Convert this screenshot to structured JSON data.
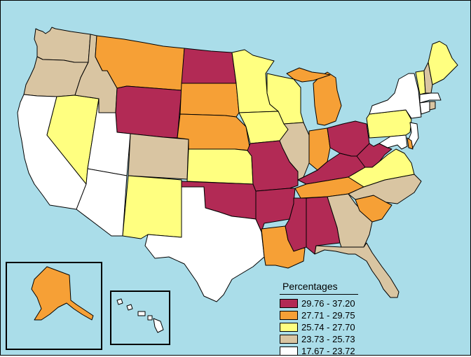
{
  "legend": {
    "title": "Percentages",
    "classes": [
      {
        "label": "29.76 - 37.20",
        "color": "#b22a55"
      },
      {
        "label": "27.71 - 29.75",
        "color": "#f6a036"
      },
      {
        "label": "25.74 - 27.70",
        "color": "#ffff80"
      },
      {
        "label": "23.73 - 25.73",
        "color": "#d9c5a2"
      },
      {
        "label": "17.67 - 23.72",
        "color": "#ffffff"
      }
    ]
  },
  "colors": {
    "water": "#aadde9",
    "border": "#000000"
  },
  "regions": [
    {
      "name": "Washington",
      "class": 3
    },
    {
      "name": "Oregon",
      "class": 3
    },
    {
      "name": "California",
      "class": 4
    },
    {
      "name": "Nevada",
      "class": 2
    },
    {
      "name": "Idaho",
      "class": 3
    },
    {
      "name": "Montana",
      "class": 1
    },
    {
      "name": "Wyoming",
      "class": 0
    },
    {
      "name": "Utah",
      "class": 4
    },
    {
      "name": "Arizona",
      "class": 4
    },
    {
      "name": "Colorado",
      "class": 3
    },
    {
      "name": "New Mexico",
      "class": 2
    },
    {
      "name": "North Dakota",
      "class": 0
    },
    {
      "name": "South Dakota",
      "class": 1
    },
    {
      "name": "Nebraska",
      "class": 1
    },
    {
      "name": "Kansas",
      "class": 2
    },
    {
      "name": "Oklahoma",
      "class": 0
    },
    {
      "name": "Texas",
      "class": 4
    },
    {
      "name": "Minnesota",
      "class": 2
    },
    {
      "name": "Iowa",
      "class": 2
    },
    {
      "name": "Missouri",
      "class": 0
    },
    {
      "name": "Arkansas",
      "class": 0
    },
    {
      "name": "Louisiana",
      "class": 1
    },
    {
      "name": "Wisconsin",
      "class": 2
    },
    {
      "name": "Illinois",
      "class": 3
    },
    {
      "name": "Michigan",
      "class": 1
    },
    {
      "name": "Indiana",
      "class": 1
    },
    {
      "name": "Ohio",
      "class": 0
    },
    {
      "name": "Kentucky",
      "class": 0
    },
    {
      "name": "Tennessee",
      "class": 1
    },
    {
      "name": "Mississippi",
      "class": 0
    },
    {
      "name": "Alabama",
      "class": 0
    },
    {
      "name": "Georgia",
      "class": 3
    },
    {
      "name": "Florida",
      "class": 3
    },
    {
      "name": "South Carolina",
      "class": 1
    },
    {
      "name": "North Carolina",
      "class": 3
    },
    {
      "name": "Virginia",
      "class": 2
    },
    {
      "name": "West Virginia",
      "class": 0
    },
    {
      "name": "Pennsylvania",
      "class": 2
    },
    {
      "name": "New York",
      "class": 4
    },
    {
      "name": "New Jersey",
      "class": 4
    },
    {
      "name": "Delaware",
      "class": 1
    },
    {
      "name": "Maryland",
      "class": 4
    },
    {
      "name": "Vermont",
      "class": 2
    },
    {
      "name": "New Hampshire",
      "class": 3
    },
    {
      "name": "Maine",
      "class": 2
    },
    {
      "name": "Massachusetts",
      "class": 4
    },
    {
      "name": "Connecticut",
      "class": 4
    },
    {
      "name": "Rhode Island",
      "class": 3
    },
    {
      "name": "Alaska",
      "class": 1
    },
    {
      "name": "Hawaii",
      "class": 4
    }
  ]
}
